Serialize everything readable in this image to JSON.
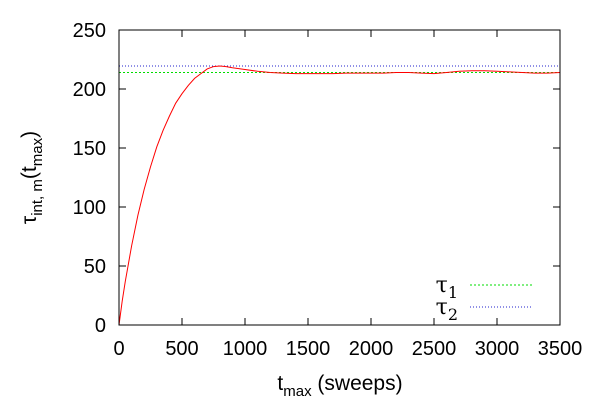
{
  "chart_data": {
    "type": "line",
    "xlabel": {
      "main": "t",
      "sub": "max",
      "rest": " (sweeps)"
    },
    "ylabel": {
      "main": "τ",
      "sub": "int, m",
      "mid": "(t",
      "sub2": "max",
      "end": ")"
    },
    "xlim": [
      0,
      3500
    ],
    "ylim": [
      0,
      250
    ],
    "xticks": [
      0,
      500,
      1000,
      1500,
      2000,
      2500,
      3000,
      3500
    ],
    "yticks": [
      0,
      50,
      100,
      150,
      200,
      250
    ],
    "grid": false,
    "legend_position": "bottom-right",
    "series": [
      {
        "color": "#ff0000",
        "style": "solid",
        "x": [
          0,
          25,
          50,
          100,
          150,
          200,
          250,
          300,
          350,
          400,
          450,
          500,
          550,
          600,
          650,
          700,
          750,
          800,
          850,
          900,
          1000,
          1100,
          1200,
          1300,
          1400,
          1500,
          1600,
          1700,
          1800,
          1900,
          2000,
          2100,
          2200,
          2300,
          2400,
          2500,
          2600,
          2700,
          2800,
          2900,
          3000,
          3100,
          3200,
          3300,
          3400,
          3500
        ],
        "values": [
          0,
          20,
          37,
          67,
          93,
          115,
          134,
          151,
          165,
          177,
          188,
          196,
          203,
          209,
          213,
          217,
          219,
          219.5,
          219,
          218,
          216.5,
          215,
          214,
          213.5,
          213,
          213,
          213,
          213,
          213.5,
          213.5,
          213.5,
          213.5,
          214,
          214,
          213.5,
          213,
          214,
          215,
          215.5,
          215.5,
          215,
          214.5,
          214,
          213.5,
          213.5,
          214
        ]
      }
    ],
    "legend": [
      {
        "base": "τ",
        "sub": "1",
        "value": 214,
        "color": "#00dd00",
        "dash": "2,2"
      },
      {
        "base": "τ",
        "sub": "2",
        "value": 219.5,
        "color": "#2222cc",
        "dash": "1,2"
      }
    ]
  }
}
